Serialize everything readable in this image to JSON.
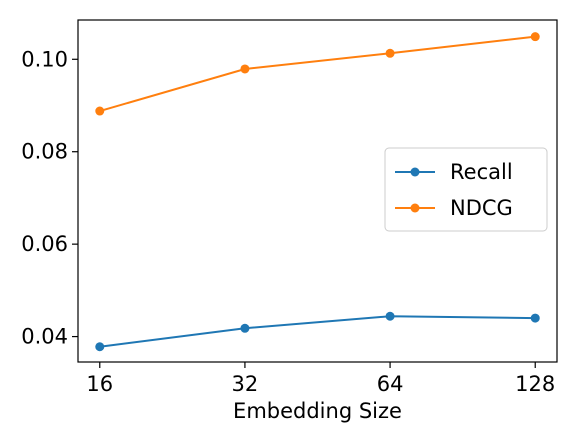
{
  "chart_data": {
    "type": "line",
    "title": "",
    "xlabel": "Embedding Size",
    "ylabel": "",
    "x": [
      16,
      32,
      64,
      128
    ],
    "x_tick_labels": [
      "16",
      "32",
      "64",
      "128"
    ],
    "x_scale": "log2",
    "ylim": [
      0.0345,
      0.1085
    ],
    "y_ticks": [
      0.04,
      0.06,
      0.08,
      0.1
    ],
    "y_tick_labels": [
      "0.04",
      "0.06",
      "0.08",
      "0.10"
    ],
    "grid": false,
    "legend_position": "center-right",
    "series": [
      {
        "name": "Recall",
        "color": "#1f77b4",
        "values": [
          0.0378,
          0.0418,
          0.0444,
          0.044
        ]
      },
      {
        "name": "NDCG",
        "color": "#ff7f0e",
        "values": [
          0.0888,
          0.0979,
          0.1013,
          0.1049
        ]
      }
    ]
  }
}
